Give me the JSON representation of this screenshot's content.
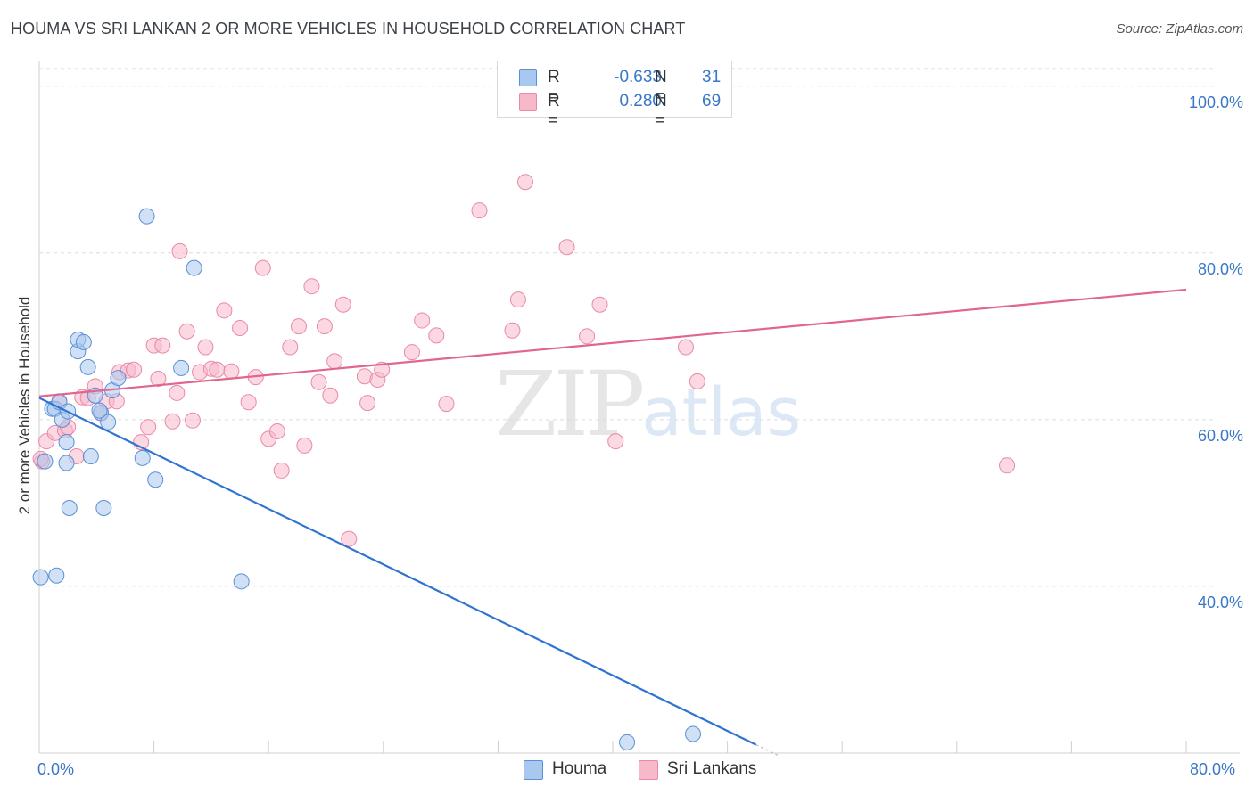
{
  "title": "HOUMA VS SRI LANKAN 2 OR MORE VEHICLES IN HOUSEHOLD CORRELATION CHART",
  "source": "Source: ZipAtlas.com",
  "watermark": {
    "zip": "ZIP",
    "atlas": "atlas"
  },
  "legend": {
    "rows": [
      {
        "r_label": "R =",
        "r_value": "-0.633",
        "n_label": "N =",
        "n_value": "31",
        "color": "#a9c8ef",
        "stroke": "#5b8fd6"
      },
      {
        "r_label": "R =",
        "r_value": "0.280",
        "n_label": "N =",
        "n_value": "69",
        "color": "#f7b8ca",
        "stroke": "#e88aa6"
      }
    ]
  },
  "bottom_legend": [
    {
      "label": "Houma",
      "color": "#a9c8ef",
      "stroke": "#5b8fd6"
    },
    {
      "label": "Sri Lankans",
      "color": "#f7b8ca",
      "stroke": "#e88aa6"
    }
  ],
  "chart_data": {
    "type": "scatter",
    "title": "HOUMA VS SRI LANKAN 2 OR MORE VEHICLES IN HOUSEHOLD CORRELATION CHART",
    "xlabel": "",
    "ylabel": "2 or more Vehicles in Household",
    "xlim": [
      0,
      80
    ],
    "ylim": [
      20,
      102
    ],
    "x_tick_labels": [
      "0.0%",
      "80.0%"
    ],
    "y_ticks": [
      40,
      60,
      80,
      100
    ],
    "y_tick_labels": [
      "40.0%",
      "60.0%",
      "80.0%",
      "100.0%"
    ],
    "grid": true,
    "legend_position": "top-center",
    "series": [
      {
        "name": "Houma",
        "color": "#a9c8ef",
        "stroke": "#5b8fd6",
        "line_color": "#2f74d0",
        "trend": {
          "x": [
            0,
            50
          ],
          "y": [
            62.6,
            21.0
          ]
        },
        "points": [
          [
            0.1,
            41.1
          ],
          [
            0.4,
            55.0
          ],
          [
            0.9,
            61.3
          ],
          [
            1.1,
            61.3
          ],
          [
            1.2,
            41.3
          ],
          [
            1.4,
            62.1
          ],
          [
            1.6,
            60.0
          ],
          [
            1.9,
            54.8
          ],
          [
            1.9,
            57.3
          ],
          [
            2.1,
            49.4
          ],
          [
            2.7,
            68.2
          ],
          [
            2.7,
            69.6
          ],
          [
            3.1,
            69.3
          ],
          [
            3.4,
            66.3
          ],
          [
            3.6,
            55.6
          ],
          [
            3.9,
            62.9
          ],
          [
            4.3,
            60.8
          ],
          [
            4.5,
            49.4
          ],
          [
            4.8,
            59.7
          ],
          [
            5.1,
            63.5
          ],
          [
            5.5,
            65.0
          ],
          [
            7.2,
            55.4
          ],
          [
            7.5,
            84.4
          ],
          [
            8.1,
            52.8
          ],
          [
            9.9,
            66.2
          ],
          [
            10.8,
            78.2
          ],
          [
            14.1,
            40.6
          ],
          [
            41.0,
            21.3
          ],
          [
            45.6,
            22.3
          ],
          [
            2.0,
            61.0
          ],
          [
            4.2,
            61.1
          ]
        ]
      },
      {
        "name": "Sri Lankans",
        "color": "#f7b8ca",
        "stroke": "#e88aa6",
        "line_color": "#e0668f",
        "trend": {
          "x": [
            0,
            80
          ],
          "y": [
            62.8,
            75.6
          ]
        },
        "points": [
          [
            0.2,
            55.0
          ],
          [
            0.5,
            57.4
          ],
          [
            1.1,
            58.4
          ],
          [
            1.4,
            62.2
          ],
          [
            1.8,
            58.7
          ],
          [
            2.0,
            59.1
          ],
          [
            2.6,
            55.6
          ],
          [
            3.0,
            62.7
          ],
          [
            3.4,
            62.6
          ],
          [
            3.9,
            64.0
          ],
          [
            4.3,
            60.8
          ],
          [
            4.7,
            62.2
          ],
          [
            5.4,
            62.2
          ],
          [
            5.6,
            65.7
          ],
          [
            6.2,
            65.9
          ],
          [
            6.6,
            66.0
          ],
          [
            7.1,
            57.3
          ],
          [
            7.6,
            59.1
          ],
          [
            8.0,
            68.9
          ],
          [
            8.3,
            64.9
          ],
          [
            8.6,
            68.9
          ],
          [
            9.3,
            59.8
          ],
          [
            9.6,
            63.2
          ],
          [
            9.8,
            80.2
          ],
          [
            10.3,
            70.6
          ],
          [
            10.7,
            59.9
          ],
          [
            11.2,
            65.7
          ],
          [
            11.6,
            68.7
          ],
          [
            12.0,
            66.1
          ],
          [
            12.4,
            66.0
          ],
          [
            12.9,
            73.1
          ],
          [
            13.4,
            65.8
          ],
          [
            14.0,
            71.0
          ],
          [
            14.6,
            62.1
          ],
          [
            15.1,
            65.1
          ],
          [
            15.6,
            78.2
          ],
          [
            16.0,
            57.7
          ],
          [
            16.6,
            58.6
          ],
          [
            16.9,
            53.9
          ],
          [
            17.5,
            68.7
          ],
          [
            18.1,
            71.2
          ],
          [
            18.5,
            56.9
          ],
          [
            19.0,
            76.0
          ],
          [
            19.5,
            64.5
          ],
          [
            19.9,
            71.2
          ],
          [
            20.3,
            62.9
          ],
          [
            20.6,
            67.0
          ],
          [
            21.2,
            73.8
          ],
          [
            21.6,
            45.7
          ],
          [
            22.7,
            65.2
          ],
          [
            22.9,
            62.0
          ],
          [
            23.6,
            64.8
          ],
          [
            23.9,
            66.0
          ],
          [
            26.0,
            68.1
          ],
          [
            26.7,
            71.9
          ],
          [
            27.7,
            70.1
          ],
          [
            28.4,
            61.9
          ],
          [
            30.7,
            85.1
          ],
          [
            33.0,
            70.7
          ],
          [
            33.4,
            74.4
          ],
          [
            33.9,
            88.5
          ],
          [
            36.8,
            80.7
          ],
          [
            38.2,
            70.0
          ],
          [
            39.1,
            73.8
          ],
          [
            40.2,
            57.4
          ],
          [
            45.1,
            68.7
          ],
          [
            45.9,
            64.6
          ],
          [
            67.5,
            54.5
          ],
          [
            0.1,
            55.3
          ]
        ]
      }
    ]
  }
}
